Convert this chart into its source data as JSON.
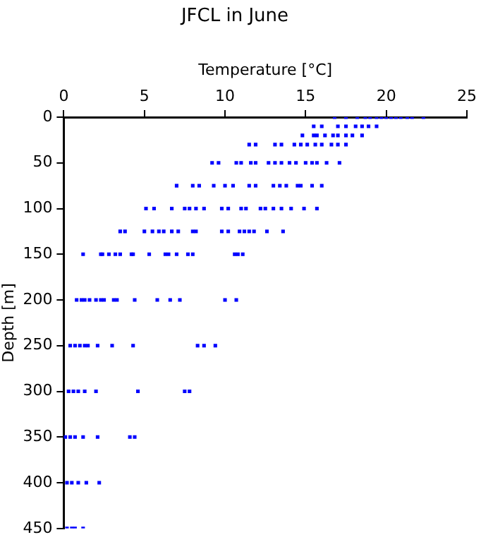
{
  "chart_data": {
    "type": "scatter",
    "title": "JFCL in June",
    "xlabel": "Temperature [°C]",
    "ylabel": "Depth [m]",
    "xlim": [
      0,
      25
    ],
    "xticks": [
      0,
      5,
      10,
      15,
      20,
      25
    ],
    "ylim": [
      450,
      0
    ],
    "yticks": [
      0,
      50,
      100,
      150,
      200,
      250,
      300,
      350,
      400,
      450
    ],
    "grid": false,
    "legend": false,
    "marker": "square",
    "series": [
      {
        "color": "#0000ff",
        "x": [
          16.8,
          17.5,
          18.2,
          18.7,
          19.0,
          19.4,
          19.7,
          20.0,
          20.3,
          20.6,
          20.9,
          21.3,
          21.6,
          22.3,
          15.5,
          16.0,
          17.0,
          17.5,
          18.1,
          18.5,
          18.9,
          19.4,
          14.8,
          15.5,
          15.7,
          16.2,
          16.7,
          17.0,
          17.5,
          17.9,
          18.5,
          11.5,
          11.9,
          13.1,
          13.5,
          14.3,
          14.7,
          15.1,
          15.6,
          16.0,
          16.6,
          17.0,
          17.5,
          9.2,
          9.6,
          10.7,
          11.0,
          11.6,
          11.9,
          12.7,
          13.1,
          13.5,
          14.0,
          14.4,
          15.0,
          15.4,
          15.7,
          16.3,
          17.1,
          7.0,
          8.0,
          8.4,
          9.3,
          10.0,
          10.5,
          11.5,
          11.9,
          13.0,
          13.4,
          13.8,
          14.5,
          14.7,
          15.4,
          16.0,
          5.1,
          5.6,
          6.7,
          7.5,
          7.8,
          8.2,
          8.7,
          9.8,
          10.2,
          11.0,
          11.3,
          12.2,
          12.5,
          13.0,
          13.5,
          14.1,
          14.9,
          15.7,
          3.5,
          3.8,
          5.0,
          5.5,
          5.9,
          6.2,
          6.7,
          7.1,
          8.0,
          8.2,
          9.8,
          10.2,
          10.9,
          11.2,
          11.5,
          11.8,
          12.6,
          13.6,
          1.2,
          2.3,
          2.4,
          2.8,
          3.2,
          3.5,
          4.2,
          4.3,
          5.3,
          6.3,
          6.5,
          7.0,
          7.7,
          8.0,
          10.6,
          10.8,
          11.1,
          0.8,
          1.1,
          1.3,
          1.6,
          2.0,
          2.3,
          2.5,
          3.1,
          3.3,
          4.4,
          5.8,
          6.6,
          7.2,
          10.0,
          10.7,
          0.4,
          0.7,
          1.0,
          1.3,
          1.5,
          2.1,
          3.0,
          4.3,
          8.3,
          8.7,
          9.4,
          0.3,
          0.6,
          0.9,
          1.3,
          2.0,
          4.6,
          7.5,
          7.8,
          0.1,
          0.4,
          0.7,
          1.2,
          2.1,
          4.1,
          4.4,
          0.2,
          0.5,
          0.9,
          1.4,
          2.2,
          0.2,
          0.5,
          0.7,
          1.2
        ],
        "values": [
          0,
          0,
          0,
          0,
          0,
          0,
          0,
          0,
          0,
          0,
          0,
          0,
          0,
          0,
          10,
          10,
          10,
          10,
          10,
          10,
          10,
          10,
          20,
          20,
          20,
          20,
          20,
          20,
          20,
          20,
          20,
          30,
          30,
          30,
          30,
          30,
          30,
          30,
          30,
          30,
          30,
          30,
          30,
          50,
          50,
          50,
          50,
          50,
          50,
          50,
          50,
          50,
          50,
          50,
          50,
          50,
          50,
          50,
          50,
          75,
          75,
          75,
          75,
          75,
          75,
          75,
          75,
          75,
          75,
          75,
          75,
          75,
          75,
          75,
          100,
          100,
          100,
          100,
          100,
          100,
          100,
          100,
          100,
          100,
          100,
          100,
          100,
          100,
          100,
          100,
          100,
          100,
          125,
          125,
          125,
          125,
          125,
          125,
          125,
          125,
          125,
          125,
          125,
          125,
          125,
          125,
          125,
          125,
          125,
          125,
          150,
          150,
          150,
          150,
          150,
          150,
          150,
          150,
          150,
          150,
          150,
          150,
          150,
          150,
          150,
          150,
          150,
          200,
          200,
          200,
          200,
          200,
          200,
          200,
          200,
          200,
          200,
          200,
          200,
          200,
          200,
          200,
          250,
          250,
          250,
          250,
          250,
          250,
          250,
          250,
          250,
          250,
          250,
          300,
          300,
          300,
          300,
          300,
          300,
          300,
          300,
          350,
          350,
          350,
          350,
          350,
          350,
          350,
          400,
          400,
          400,
          400,
          400,
          450,
          450,
          450,
          450
        ]
      }
    ]
  }
}
